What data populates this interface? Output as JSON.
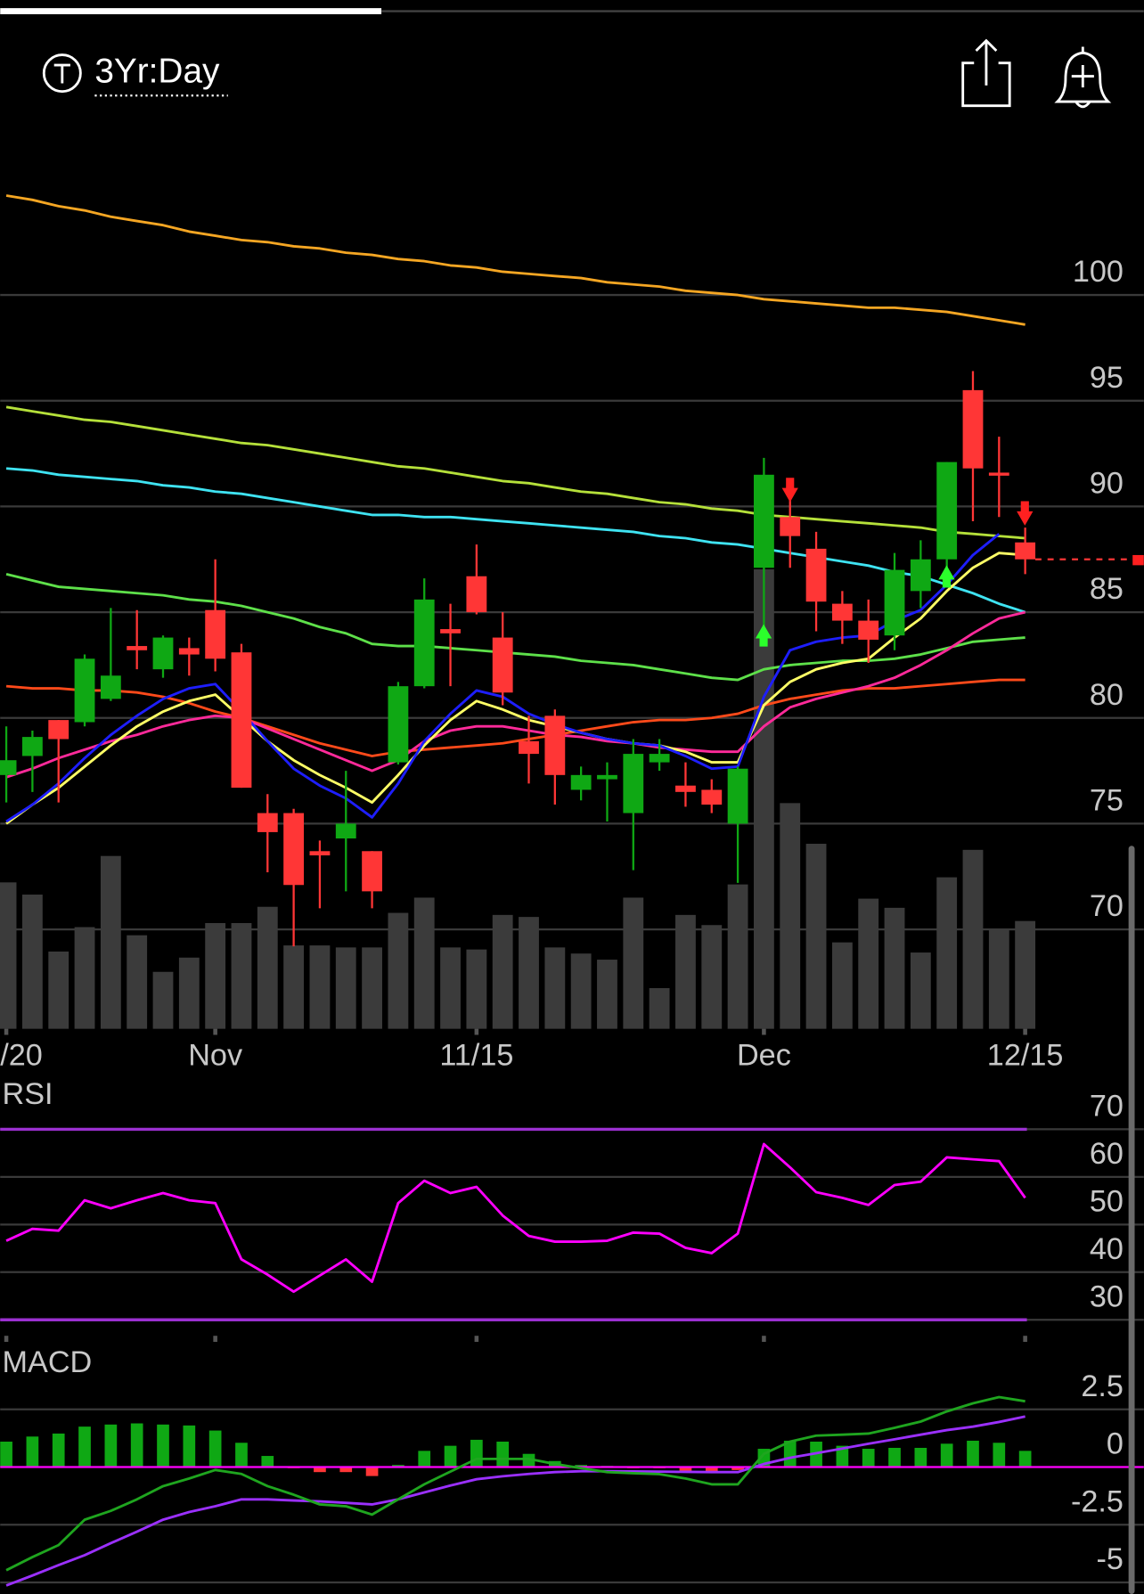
{
  "header": {
    "range": "3Yr:Day"
  },
  "chart_data": [
    {
      "type": "candlestick",
      "categories": [
        "/20",
        null,
        null,
        null,
        null,
        null,
        null,
        null,
        "Nov",
        null,
        null,
        null,
        null,
        null,
        null,
        null,
        null,
        null,
        "11/15",
        null,
        null,
        null,
        null,
        null,
        null,
        null,
        null,
        null,
        null,
        "Dec",
        null,
        null,
        null,
        null,
        null,
        null,
        null,
        null,
        null,
        "12/15"
      ],
      "open": [
        77.3,
        78.2,
        79.9,
        79.8,
        80.9,
        83.4,
        82.3,
        83.3,
        85.1,
        83.1,
        75.5,
        75.5,
        73.7,
        74.3,
        73.7,
        77.9,
        81.5,
        84.2,
        86.7,
        83.8,
        78.9,
        80.1,
        76.6,
        77.1,
        75.5,
        77.9,
        76.8,
        76.6,
        75.0,
        87.1,
        89.5,
        88.0,
        85.4,
        84.6,
        83.9,
        86.0,
        87.5,
        95.5,
        91.6,
        88.3
      ],
      "high": [
        79.6,
        79.4,
        79.9,
        83.0,
        85.2,
        85.1,
        83.9,
        83.8,
        87.5,
        83.5,
        76.4,
        75.7,
        74.2,
        77.5,
        73.7,
        81.7,
        86.6,
        85.4,
        88.2,
        85.0,
        80.1,
        80.4,
        77.7,
        77.9,
        79.0,
        79.0,
        77.9,
        77.1,
        77.7,
        92.3,
        90.4,
        88.8,
        86.0,
        85.6,
        87.8,
        88.4,
        92.1,
        96.4,
        93.3,
        89.0
      ],
      "low": [
        76.0,
        76.5,
        76.0,
        79.6,
        80.8,
        82.3,
        81.9,
        82.0,
        82.2,
        76.7,
        72.7,
        69.2,
        71.0,
        71.8,
        71.0,
        77.8,
        81.4,
        81.5,
        84.9,
        80.6,
        76.9,
        75.9,
        76.1,
        75.1,
        72.8,
        77.5,
        75.8,
        75.5,
        72.2,
        84.0,
        87.1,
        84.1,
        83.5,
        82.6,
        83.2,
        85.2,
        87.1,
        89.3,
        89.5,
        86.8
      ],
      "close": [
        78.0,
        79.1,
        79.0,
        82.8,
        82.0,
        83.2,
        83.8,
        83.0,
        82.8,
        76.7,
        74.6,
        72.1,
        73.5,
        75.0,
        71.8,
        81.5,
        85.6,
        84.0,
        85.0,
        81.2,
        78.3,
        77.3,
        77.3,
        77.3,
        78.3,
        78.3,
        76.5,
        75.9,
        77.6,
        91.5,
        88.6,
        85.5,
        84.6,
        83.7,
        87.0,
        87.5,
        92.1,
        91.8,
        91.5,
        87.5
      ],
      "up_color": "#0fa814",
      "down_color": "#ff3636",
      "volume": {
        "color": "#3b3b3b",
        "values": [
          144,
          132,
          76,
          100,
          170,
          92,
          56,
          70,
          104,
          104,
          120,
          82,
          82,
          80,
          80,
          114,
          129,
          80,
          78,
          112,
          110,
          80,
          74,
          68,
          129,
          40,
          112,
          102,
          142,
          452,
          222,
          182,
          85,
          128,
          119,
          75,
          149,
          176,
          98,
          106
        ]
      },
      "lines": [
        {
          "color": "#f5a623",
          "values": [
            104.7,
            104.5,
            104.2,
            104.0,
            103.7,
            103.5,
            103.3,
            103.0,
            102.8,
            102.6,
            102.5,
            102.3,
            102.2,
            102.0,
            101.9,
            101.7,
            101.6,
            101.4,
            101.3,
            101.1,
            101.0,
            100.9,
            100.8,
            100.6,
            100.5,
            100.4,
            100.2,
            100.1,
            100.0,
            99.8,
            99.7,
            99.6,
            99.5,
            99.4,
            99.4,
            99.3,
            99.2,
            99.0,
            98.8,
            98.6
          ]
        },
        {
          "color": "#b5e03a",
          "values": [
            94.7,
            94.5,
            94.3,
            94.1,
            94.0,
            93.8,
            93.6,
            93.4,
            93.2,
            93.0,
            92.9,
            92.7,
            92.5,
            92.3,
            92.1,
            91.9,
            91.8,
            91.6,
            91.4,
            91.2,
            91.1,
            90.9,
            90.7,
            90.6,
            90.4,
            90.2,
            90.1,
            89.9,
            89.8,
            89.6,
            89.5,
            89.4,
            89.3,
            89.2,
            89.1,
            89.0,
            88.8,
            88.7,
            88.6,
            88.5
          ]
        },
        {
          "color": "#3fe3f2",
          "values": [
            91.8,
            91.7,
            91.5,
            91.4,
            91.3,
            91.2,
            91.0,
            90.9,
            90.7,
            90.6,
            90.4,
            90.2,
            90.0,
            89.8,
            89.6,
            89.6,
            89.5,
            89.5,
            89.4,
            89.3,
            89.2,
            89.1,
            89.0,
            88.9,
            88.8,
            88.6,
            88.5,
            88.3,
            88.2,
            88.0,
            87.8,
            87.6,
            87.4,
            87.2,
            86.9,
            86.7,
            86.3,
            85.9,
            85.4,
            85.0
          ]
        },
        {
          "color": "#5ee04a",
          "values": [
            86.8,
            86.5,
            86.2,
            86.1,
            86.0,
            85.9,
            85.8,
            85.6,
            85.5,
            85.3,
            85.0,
            84.7,
            84.3,
            84.0,
            83.5,
            83.4,
            83.4,
            83.3,
            83.2,
            83.1,
            83.0,
            82.9,
            82.7,
            82.6,
            82.5,
            82.3,
            82.1,
            81.9,
            81.8,
            82.3,
            82.5,
            82.6,
            82.7,
            82.7,
            82.8,
            83.0,
            83.3,
            83.6,
            83.7,
            83.8
          ]
        },
        {
          "color": "#ff4a1a",
          "values": [
            81.5,
            81.4,
            81.4,
            81.3,
            81.3,
            81.2,
            81.0,
            80.7,
            80.3,
            80.0,
            79.6,
            79.2,
            78.8,
            78.5,
            78.2,
            78.4,
            78.5,
            78.6,
            78.7,
            78.8,
            79.0,
            79.2,
            79.4,
            79.6,
            79.8,
            79.9,
            79.9,
            80.0,
            80.2,
            80.6,
            80.9,
            81.1,
            81.3,
            81.4,
            81.4,
            81.5,
            81.6,
            81.7,
            81.8,
            81.8
          ]
        },
        {
          "color": "#ff2a9a",
          "values": [
            77.2,
            77.6,
            78.1,
            78.5,
            78.9,
            79.2,
            79.6,
            79.9,
            80.1,
            80.0,
            79.5,
            79.0,
            78.5,
            78.0,
            77.5,
            78.0,
            78.9,
            79.4,
            79.6,
            79.6,
            79.4,
            79.2,
            79.1,
            78.9,
            78.8,
            78.6,
            78.5,
            78.4,
            78.4,
            79.6,
            80.5,
            80.9,
            81.2,
            81.5,
            81.9,
            82.5,
            83.2,
            84.0,
            84.7,
            85.0
          ]
        },
        {
          "color": "#ffff66",
          "values": [
            75.0,
            75.9,
            76.7,
            77.7,
            78.7,
            79.6,
            80.3,
            80.8,
            81.1,
            80.0,
            78.9,
            78.0,
            77.3,
            76.7,
            76.0,
            77.3,
            78.7,
            79.9,
            80.8,
            80.4,
            79.9,
            79.6,
            79.3,
            79.0,
            78.8,
            78.7,
            78.4,
            77.9,
            77.9,
            80.6,
            81.7,
            82.3,
            82.6,
            82.8,
            83.8,
            84.7,
            86.0,
            87.1,
            87.8,
            87.7
          ]
        },
        {
          "color": "#1e1eff",
          "values": [
            75.1,
            75.9,
            76.9,
            78.1,
            79.2,
            80.1,
            80.9,
            81.4,
            81.6,
            80.3,
            78.9,
            77.6,
            76.8,
            76.2,
            75.3,
            76.9,
            78.9,
            80.2,
            81.3,
            81.0,
            80.2,
            79.7,
            79.3,
            79.0,
            78.8,
            78.7,
            78.2,
            77.6,
            77.7,
            81.0,
            83.2,
            83.6,
            83.8,
            83.9,
            84.6,
            85.1,
            86.3,
            87.7,
            88.7,
            null
          ]
        }
      ],
      "ylim": [
        65.3,
        107.7
      ],
      "yticks": [
        70,
        75,
        80,
        85,
        90,
        95,
        100
      ],
      "grid": true
    },
    {
      "type": "line",
      "title": "RSI",
      "color": "#ff00ff",
      "values": [
        46.6,
        49.1,
        48.7,
        55.1,
        53.4,
        55.1,
        56.6,
        55.1,
        54.5,
        42.7,
        39.5,
        35.9,
        39.3,
        42.7,
        38.0,
        54.5,
        59.2,
        56.6,
        57.9,
        51.9,
        47.6,
        46.4,
        46.4,
        46.6,
        48.3,
        48.1,
        45.1,
        44.0,
        48.1,
        66.9,
        62.0,
        56.8,
        55.6,
        54.1,
        58.3,
        59.0,
        64.1,
        63.7,
        63.3,
        55.6
      ],
      "levels": [
        70,
        30
      ],
      "level_color": "#9b30d0",
      "ylim": [
        26,
        80
      ],
      "yticks": [
        30,
        40,
        50,
        60,
        70
      ],
      "grid": true
    },
    {
      "type": "macd",
      "title": "MACD",
      "histogram": [
        1.1,
        1.32,
        1.45,
        1.75,
        1.84,
        1.89,
        1.84,
        1.8,
        1.58,
        1.05,
        0.48,
        -0.05,
        -0.22,
        -0.22,
        -0.39,
        0.09,
        0.7,
        0.92,
        1.18,
        1.1,
        0.57,
        0.26,
        0.09,
        0.05,
        -0.05,
        -0.05,
        -0.18,
        -0.18,
        -0.13,
        0.79,
        1.14,
        1.1,
        0.92,
        0.79,
        0.83,
        0.83,
        1.01,
        1.14,
        1.05,
        0.7
      ],
      "macd": [
        -4.47,
        -3.9,
        -3.38,
        -2.28,
        -1.9,
        -1.4,
        -0.83,
        -0.5,
        -0.13,
        -0.3,
        -0.83,
        -1.2,
        -1.62,
        -1.7,
        -2.06,
        -1.4,
        -0.75,
        -0.2,
        0.35,
        0.35,
        0.35,
        0.13,
        -0.05,
        -0.22,
        -0.27,
        -0.31,
        -0.5,
        -0.75,
        -0.75,
        0.57,
        1.1,
        1.36,
        1.4,
        1.45,
        1.7,
        1.97,
        2.41,
        2.76,
        3.03,
        2.85
      ],
      "signal": [
        -5.13,
        -4.7,
        -4.25,
        -3.82,
        -3.3,
        -2.8,
        -2.28,
        -1.95,
        -1.7,
        -1.4,
        -1.4,
        -1.45,
        -1.49,
        -1.55,
        -1.62,
        -1.4,
        -1.1,
        -0.8,
        -0.53,
        -0.4,
        -0.3,
        -0.22,
        -0.18,
        -0.18,
        -0.19,
        -0.2,
        -0.21,
        -0.22,
        -0.22,
        0.13,
        0.4,
        0.6,
        0.8,
        1.01,
        1.2,
        1.4,
        1.6,
        1.75,
        1.95,
        2.19
      ],
      "macd_color": "#1fa51f",
      "signal_color": "#9b30ff",
      "up_color": "#0fa814",
      "down_color": "#ff3636",
      "zero_color": "#ff00ff",
      "ylim": [
        -5.5,
        5.2
      ],
      "yticks": [
        2.5,
        0,
        -2.5,
        -5
      ],
      "grid": true
    }
  ]
}
